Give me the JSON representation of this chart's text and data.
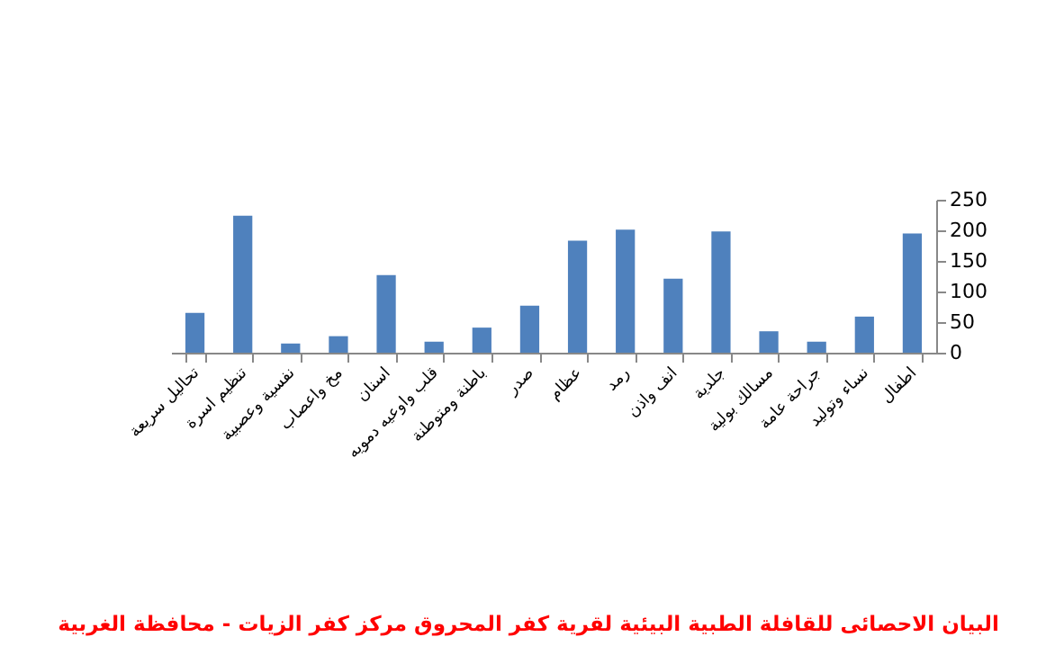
{
  "chart_data": {
    "type": "bar",
    "title": "البيان الاحصائى للقافلة الطبية البيئية لقرية كفر المحروق مركز كفر الزيات - محافظة الغربية",
    "categories": [
      "تحاليل سريعة",
      "تنظيم اسرة",
      "نفسية وعصبية",
      "مخ واعصاب",
      "اسنان",
      "قلب واوعيه دمويه",
      "باطنة ومتوطنة",
      "صدر",
      "عظام",
      "رمد",
      "انف واذن",
      "جلدية",
      "مسالك بولية",
      "جراحة عامة",
      "نساء وتوليد",
      "اطفال"
    ],
    "values": [
      65,
      224,
      15,
      27,
      127,
      18,
      41,
      77,
      183,
      201,
      121,
      198,
      35,
      18,
      59,
      195
    ],
    "color": "#4f81bd",
    "ylim": [
      0,
      250
    ],
    "yticks": [
      0,
      50,
      100,
      150,
      200,
      250
    ],
    "grid": false
  }
}
